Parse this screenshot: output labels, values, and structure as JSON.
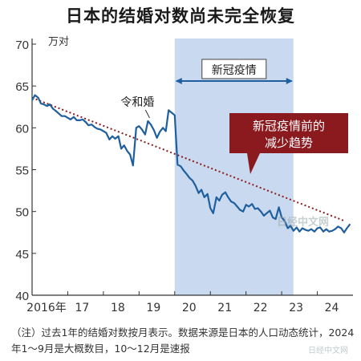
{
  "title": "日本的结婚对数尚未完全恢复",
  "unit_label": "万对",
  "note": "（注）过去1年的结婚对数按月表示。数据来源是日本的人口动态统计，2024年1～9月是大概数目，10～12月是速报",
  "annotations": {
    "covid_band_label": "新冠疫情",
    "reiwa_label": "令和婚",
    "trend_label_line1": "新冠疫情前的",
    "trend_label_line2": "减少趋势"
  },
  "watermarks": {
    "center": "日经中文网",
    "corner": "日经中文网"
  },
  "colors": {
    "line": "#1f5f9e",
    "trend": "#8b1c1c",
    "band": "#c9d9ef",
    "callout_bg": "#8b1a1f"
  },
  "chart_data": {
    "type": "line",
    "title": "日本的结婚对数尚未完全恢复",
    "ylabel": "万对",
    "xlabel": "",
    "ylim": [
      40,
      70
    ],
    "yticks": [
      40,
      45,
      50,
      55,
      60,
      65,
      70
    ],
    "xlim": [
      2016.0,
      2025.0
    ],
    "xticks": [
      {
        "x": 2016.0,
        "label": "2016年"
      },
      {
        "x": 2017.0,
        "label": "17"
      },
      {
        "x": 2018.0,
        "label": "18"
      },
      {
        "x": 2019.0,
        "label": "19"
      },
      {
        "x": 2020.0,
        "label": "20"
      },
      {
        "x": 2021.0,
        "label": "21"
      },
      {
        "x": 2022.0,
        "label": "22"
      },
      {
        "x": 2023.0,
        "label": "23"
      },
      {
        "x": 2024.0,
        "label": "24"
      }
    ],
    "grid": false,
    "shaded_region": {
      "x_start": 2020.0,
      "x_end": 2023.33,
      "label": "新冠疫情"
    },
    "series": [
      {
        "x": [
          2016.0,
          2016.08,
          2016.17,
          2016.25,
          2016.33,
          2016.42,
          2016.5,
          2016.58,
          2016.67,
          2016.75,
          2016.83,
          2016.92,
          2017.0,
          2017.08,
          2017.17,
          2017.25,
          2017.33,
          2017.42,
          2017.5,
          2017.58,
          2017.67,
          2017.75,
          2017.83,
          2017.92,
          2018.0,
          2018.08,
          2018.17,
          2018.25,
          2018.33,
          2018.42,
          2018.5,
          2018.58,
          2018.67,
          2018.75,
          2018.83,
          2018.92,
          2019.0,
          2019.08,
          2019.17,
          2019.25,
          2019.33,
          2019.42,
          2019.5,
          2019.58,
          2019.67,
          2019.75,
          2019.83,
          2019.92,
          2020.0,
          2020.08,
          2020.17,
          2020.25,
          2020.33,
          2020.42,
          2020.5,
          2020.58,
          2020.67,
          2020.75,
          2020.83,
          2020.92,
          2021.0,
          2021.08,
          2021.17,
          2021.25,
          2021.33,
          2021.42,
          2021.5,
          2021.58,
          2021.67,
          2021.75,
          2021.83,
          2021.92,
          2022.0,
          2022.08,
          2022.17,
          2022.25,
          2022.33,
          2022.42,
          2022.5,
          2022.58,
          2022.67,
          2022.75,
          2022.83,
          2022.92,
          2023.0,
          2023.08,
          2023.17,
          2023.25,
          2023.33,
          2023.42,
          2023.5,
          2023.58,
          2023.67,
          2023.75,
          2023.83,
          2023.92,
          2024.0,
          2024.08,
          2024.17,
          2024.25,
          2024.33,
          2024.42,
          2024.5,
          2024.58,
          2024.67,
          2024.75,
          2024.83,
          2024.92
        ],
        "values": [
          63.3,
          63.9,
          63.6,
          62.9,
          62.8,
          62.6,
          62.8,
          62.3,
          62.0,
          61.7,
          61.4,
          61.4,
          61.2,
          61.0,
          61.3,
          60.9,
          60.9,
          61.0,
          60.7,
          60.3,
          60.4,
          60.1,
          59.9,
          59.8,
          59.6,
          59.4,
          58.6,
          59.0,
          58.7,
          59.0,
          57.5,
          57.9,
          57.2,
          56.8,
          55.5,
          60.0,
          60.2,
          59.8,
          59.2,
          60.8,
          60.4,
          59.7,
          58.8,
          59.5,
          60.0,
          59.6,
          62.1,
          61.8,
          61.5,
          55.6,
          55.4,
          54.9,
          54.5,
          54.0,
          53.7,
          53.1,
          52.2,
          52.6,
          51.7,
          52.1,
          50.4,
          49.8,
          51.7,
          51.3,
          52.0,
          52.3,
          51.7,
          51.2,
          51.0,
          50.6,
          50.2,
          50.0,
          50.8,
          50.6,
          50.9,
          50.3,
          50.4,
          50.0,
          49.5,
          49.8,
          50.1,
          49.3,
          49.1,
          50.5,
          49.3,
          48.9,
          48.0,
          48.3,
          47.7,
          48.1,
          47.6,
          48.0,
          47.8,
          47.7,
          47.9,
          47.6,
          48.0,
          48.1,
          47.6,
          47.9,
          47.6,
          47.7,
          47.9,
          48.2,
          48.0,
          47.5,
          48.0,
          48.5
        ]
      }
    ],
    "trend_line": {
      "x": [
        2016.0,
        2024.75
      ],
      "values": [
        63.6,
        48.9
      ]
    }
  }
}
